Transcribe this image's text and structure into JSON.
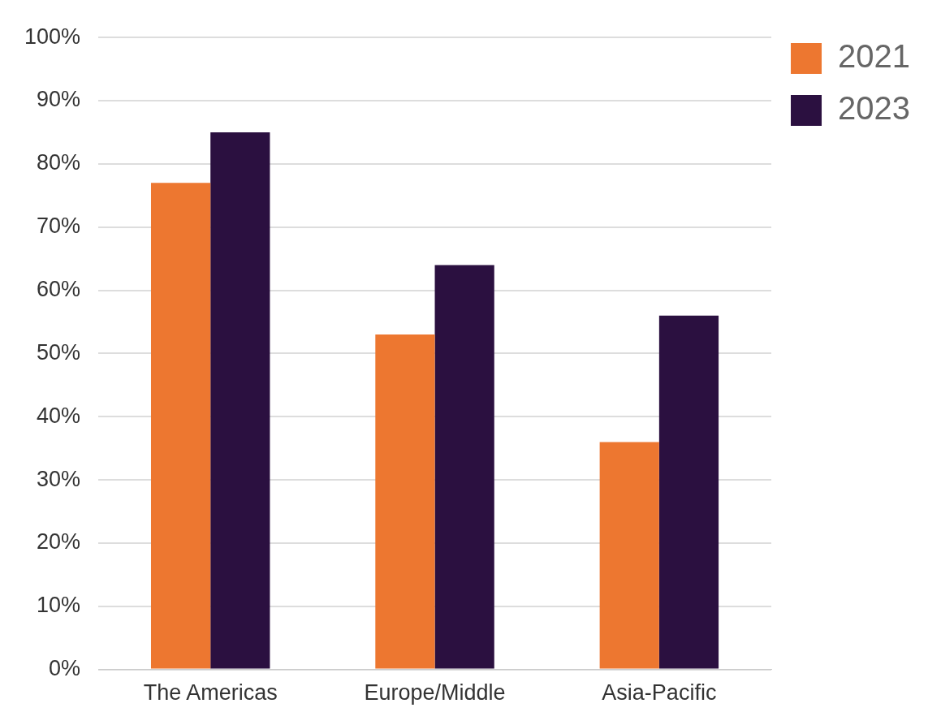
{
  "chart_data": {
    "type": "bar",
    "categories": [
      "The Americas",
      "Europe/Middle",
      "Asia-Pacific"
    ],
    "series": [
      {
        "name": "2021",
        "color": "#ed7730",
        "values": [
          77,
          53,
          36
        ]
      },
      {
        "name": "2023",
        "color": "#2b1040",
        "values": [
          85,
          64,
          56
        ]
      }
    ],
    "ylim": [
      0,
      100
    ],
    "yticks": [
      {
        "value": 0,
        "label": "0%"
      },
      {
        "value": 10,
        "label": "10%"
      },
      {
        "value": 20,
        "label": "20%"
      },
      {
        "value": 30,
        "label": "30%"
      },
      {
        "value": 40,
        "label": "40%"
      },
      {
        "value": 50,
        "label": "50%"
      },
      {
        "value": 60,
        "label": "60%"
      },
      {
        "value": 70,
        "label": "70%"
      },
      {
        "value": 80,
        "label": "80%"
      },
      {
        "value": 90,
        "label": "90%"
      },
      {
        "value": 100,
        "label": "100%"
      }
    ],
    "grid": "y",
    "legend": "top right"
  }
}
